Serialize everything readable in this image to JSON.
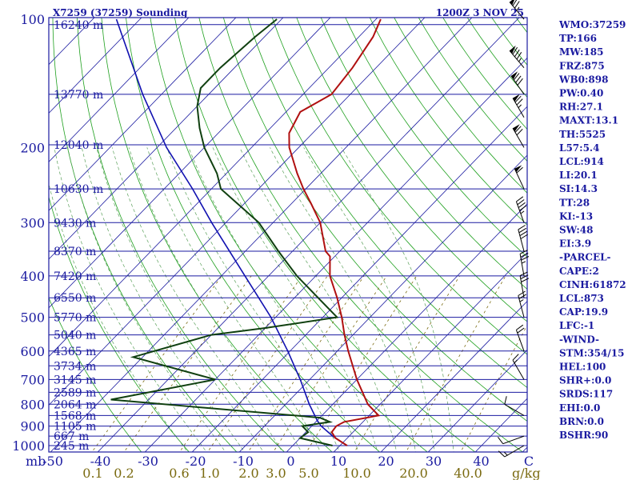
{
  "colors": {
    "frame": "#1a1aa0",
    "isobar": "#1a1aa0",
    "isotherm": "#1a1aa0",
    "dry_adiabat": "#1fa01f",
    "moist_adiabat": "#5aa05a",
    "mixing_ratio": "#7a6a10",
    "temperature": "#b01010",
    "dewpoint": "#104010",
    "parcel": "#1010b0",
    "mixing_label": "#7a6a10"
  },
  "chart_data": {
    "type": "skew-t",
    "title_left": "X7259 (37259) Sounding",
    "title_right": "1200Z  3 NOV 25",
    "pressure_unit_label": "mb",
    "mixing_unit_label": "g/kg",
    "pressure_levels": [
      100,
      200,
      300,
      400,
      500,
      600,
      700,
      800,
      900,
      1000
    ],
    "height_levels": [
      {
        "p": 103,
        "label": "16240 m"
      },
      {
        "p": 150,
        "label": "13770 m"
      },
      {
        "p": 197,
        "label": "12040 m"
      },
      {
        "p": 250,
        "label": "10630 m"
      },
      {
        "p": 300,
        "label": "9430 m"
      },
      {
        "p": 350,
        "label": "8370 m"
      },
      {
        "p": 400,
        "label": "7420 m"
      },
      {
        "p": 450,
        "label": "6550 m"
      },
      {
        "p": 500,
        "label": "5770 m"
      },
      {
        "p": 550,
        "label": "5040 m"
      },
      {
        "p": 600,
        "label": "4365 m"
      },
      {
        "p": 650,
        "label": "3734 m"
      },
      {
        "p": 700,
        "label": "3145 m"
      },
      {
        "p": 750,
        "label": "2589 m"
      },
      {
        "p": 800,
        "label": "2064 m"
      },
      {
        "p": 850,
        "label": "1568 m"
      },
      {
        "p": 900,
        "label": "1105 m"
      },
      {
        "p": 950,
        "label": "667 m"
      },
      {
        "p": 1000,
        "label": "245 m"
      }
    ],
    "temperature_ticks": [
      "-50",
      "-40",
      "-30",
      "-20",
      "-10",
      "0",
      "10",
      "20",
      "30",
      "40",
      "C"
    ],
    "mixing_ratio_ticks": [
      "0.1",
      "0.2",
      "0.6",
      "1.0",
      "2.0",
      "3.0",
      "5.0",
      "10.0",
      "20.0",
      "40.0"
    ],
    "mixing_ratio_values": [
      0.1,
      0.2,
      0.6,
      1.0,
      2.0,
      3.0,
      5.0,
      10.0,
      20.0,
      40.0
    ],
    "temperature_profile": [
      {
        "p": 1000,
        "t": 11.5
      },
      {
        "p": 980,
        "t": 9.5
      },
      {
        "p": 960,
        "t": 7.5
      },
      {
        "p": 930,
        "t": 5.5
      },
      {
        "p": 900,
        "t": 5.2
      },
      {
        "p": 880,
        "t": 6.0
      },
      {
        "p": 850,
        "t": 12.0
      },
      {
        "p": 800,
        "t": 7.4
      },
      {
        "p": 700,
        "t": 0.0
      },
      {
        "p": 600,
        "t": -7.7
      },
      {
        "p": 550,
        "t": -11.8
      },
      {
        "p": 500,
        "t": -16.0
      },
      {
        "p": 450,
        "t": -21.0
      },
      {
        "p": 400,
        "t": -27.0
      },
      {
        "p": 360,
        "t": -31.0
      },
      {
        "p": 350,
        "t": -33.0
      },
      {
        "p": 300,
        "t": -40.0
      },
      {
        "p": 270,
        "t": -46.0
      },
      {
        "p": 250,
        "t": -50.5
      },
      {
        "p": 230,
        "t": -55.0
      },
      {
        "p": 200,
        "t": -62.0
      },
      {
        "p": 185,
        "t": -65.0
      },
      {
        "p": 165,
        "t": -67.0
      },
      {
        "p": 150,
        "t": -64.0
      },
      {
        "p": 130,
        "t": -65.0
      },
      {
        "p": 110,
        "t": -67.0
      },
      {
        "p": 100,
        "t": -69.0
      }
    ],
    "dewpoint_profile": [
      {
        "p": 1000,
        "t": 8.4
      },
      {
        "p": 960,
        "t": 0.0
      },
      {
        "p": 930,
        "t": 0.5
      },
      {
        "p": 900,
        "t": -2.0
      },
      {
        "p": 880,
        "t": 3.0
      },
      {
        "p": 860,
        "t": 0.0
      },
      {
        "p": 780,
        "t": -48.0
      },
      {
        "p": 700,
        "t": -30.0
      },
      {
        "p": 620,
        "t": -52.0
      },
      {
        "p": 550,
        "t": -40.0
      },
      {
        "p": 530,
        "t": -30.0
      },
      {
        "p": 500,
        "t": -17.0
      },
      {
        "p": 400,
        "t": -34.0
      },
      {
        "p": 350,
        "t": -43.0
      },
      {
        "p": 300,
        "t": -53.0
      },
      {
        "p": 250,
        "t": -68.0
      },
      {
        "p": 230,
        "t": -72.0
      },
      {
        "p": 200,
        "t": -80.0
      },
      {
        "p": 180,
        "t": -85.0
      },
      {
        "p": 160,
        "t": -90.0
      },
      {
        "p": 145,
        "t": -93.0
      },
      {
        "p": 130,
        "t": -93.0
      },
      {
        "p": 110,
        "t": -92.0
      },
      {
        "p": 100,
        "t": -91.0
      }
    ],
    "parcel_profile": [
      {
        "p": 1000,
        "t": 11.5
      },
      {
        "p": 950,
        "t": 6.5
      },
      {
        "p": 900,
        "t": 2.0
      },
      {
        "p": 873,
        "t": 0.0
      },
      {
        "p": 800,
        "t": -5.0
      },
      {
        "p": 700,
        "t": -12.0
      },
      {
        "p": 600,
        "t": -20.5
      },
      {
        "p": 500,
        "t": -31.0
      },
      {
        "p": 400,
        "t": -45.0
      },
      {
        "p": 300,
        "t": -63.0
      },
      {
        "p": 250,
        "t": -74.0
      },
      {
        "p": 200,
        "t": -88.0
      },
      {
        "p": 150,
        "t": -104.0
      },
      {
        "p": 100,
        "t": -125.0
      }
    ],
    "wind_barbs": [
      {
        "p": 1000,
        "dir": 240,
        "kt": 15
      },
      {
        "p": 950,
        "dir": 250,
        "kt": 10
      },
      {
        "p": 850,
        "dir": 300,
        "kt": 10
      },
      {
        "p": 700,
        "dir": 330,
        "kt": 15
      },
      {
        "p": 600,
        "dir": 340,
        "kt": 20
      },
      {
        "p": 500,
        "dir": 345,
        "kt": 25
      },
      {
        "p": 450,
        "dir": 350,
        "kt": 30
      },
      {
        "p": 400,
        "dir": 350,
        "kt": 35
      },
      {
        "p": 350,
        "dir": 345,
        "kt": 40
      },
      {
        "p": 300,
        "dir": 340,
        "kt": 45
      },
      {
        "p": 250,
        "dir": 335,
        "kt": 60
      },
      {
        "p": 200,
        "dir": 330,
        "kt": 70
      },
      {
        "p": 170,
        "dir": 330,
        "kt": 75
      },
      {
        "p": 150,
        "dir": 325,
        "kt": 80
      },
      {
        "p": 130,
        "dir": 320,
        "kt": 85
      },
      {
        "p": 100,
        "dir": 320,
        "kt": 75
      }
    ]
  },
  "indices": [
    "WMO:37259",
    "TP:166",
    "MW:185",
    "FRZ:875",
    "WB0:898",
    "PW:0.40",
    "RH:27.1",
    "MAXT:13.1",
    "TH:5525",
    "L57:5.4",
    "LCL:914",
    "LI:20.1",
    "SI:14.3",
    "TT:28",
    "KI:-13",
    "SW:48",
    "EI:3.9",
    "-PARCEL-",
    "CAPE:2",
    "CINH:61872",
    "LCL:873",
    "CAP:19.9",
    "LFC:-1",
    "-WIND-",
    "STM:354/15",
    "HEL:100",
    "SHR+:0.0",
    "SRDS:117",
    "EHI:0.0",
    "BRN:0.0",
    "BSHR:90"
  ]
}
